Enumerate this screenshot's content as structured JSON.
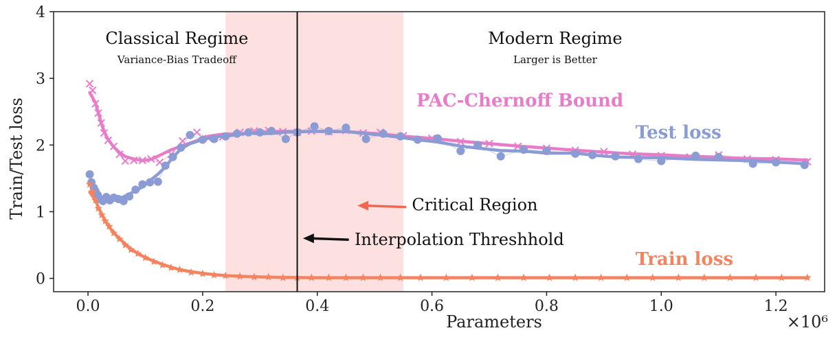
{
  "chart_data": {
    "type": "line",
    "xlabel": "Parameters",
    "xlabel_multiplier": "×10⁶",
    "ylabel": "Train/Test loss",
    "xlim": [
      -0.06,
      1.285
    ],
    "ylim": [
      -0.2,
      4
    ],
    "xticks": [
      0.0,
      0.2,
      0.4,
      0.6,
      0.8,
      1.0,
      1.2
    ],
    "xtick_labels": [
      "0.0",
      "0.2",
      "0.4",
      "0.6",
      "0.8",
      "1.0",
      "1.2"
    ],
    "yticks": [
      0,
      1,
      2,
      3,
      4
    ],
    "ytick_labels": [
      "0",
      "1",
      "2",
      "3",
      "4"
    ],
    "grid": false,
    "critical_region": {
      "x_start": 0.24,
      "x_end": 0.55,
      "color": "#fde1e1"
    },
    "interpolation_threshold_x": 0.365,
    "regimes": [
      {
        "title": "Classical Regime",
        "subtitle": "Variance-Bias Tradeoff",
        "x": 0.155
      },
      {
        "title": "Modern Regime",
        "subtitle": "Larger is Better",
        "x": 0.815
      }
    ],
    "annotations": [
      {
        "text": "Critical Region",
        "text_x": 0.565,
        "text_y": 1.1,
        "arrow_from": [
          0.555,
          1.07
        ],
        "arrow_to": [
          0.47,
          1.09
        ],
        "color": "#f2684f"
      },
      {
        "text": "Interpolation Threshhold",
        "text_x": 0.465,
        "text_y": 0.58,
        "arrow_from": [
          0.455,
          0.58
        ],
        "arrow_to": [
          0.375,
          0.6
        ],
        "color": "#111111"
      }
    ],
    "series": [
      {
        "name": "PAC-Chernoff Bound",
        "color": "#e77dc8",
        "marker": "x",
        "label_pos": [
          0.573,
          2.58
        ],
        "x": [
          0.003,
          0.008,
          0.013,
          0.018,
          0.023,
          0.028,
          0.035,
          0.045,
          0.055,
          0.065,
          0.08,
          0.095,
          0.11,
          0.125,
          0.145,
          0.165,
          0.19,
          0.21,
          0.235,
          0.265,
          0.29,
          0.315,
          0.34,
          0.365,
          0.39,
          0.42,
          0.45,
          0.48,
          0.51,
          0.55,
          0.6,
          0.65,
          0.7,
          0.75,
          0.8,
          0.85,
          0.9,
          0.95,
          1.0,
          1.05,
          1.1,
          1.15,
          1.2,
          1.255
        ],
        "y": [
          2.92,
          2.82,
          2.62,
          2.48,
          2.33,
          2.18,
          2.07,
          1.98,
          1.86,
          1.76,
          1.77,
          1.77,
          1.79,
          1.74,
          1.86,
          2.06,
          2.19,
          2.1,
          2.12,
          2.19,
          2.21,
          2.22,
          2.2,
          2.19,
          2.21,
          2.2,
          2.22,
          2.18,
          2.19,
          2.14,
          2.1,
          2.05,
          2.02,
          1.98,
          1.95,
          1.92,
          1.9,
          1.86,
          1.84,
          1.82,
          1.85,
          1.79,
          1.78,
          1.75
        ]
      },
      {
        "name": "Test loss",
        "color": "#8b9bd3",
        "marker": "o",
        "label_pos": [
          0.955,
          2.1
        ],
        "x": [
          0.003,
          0.006,
          0.01,
          0.013,
          0.017,
          0.021,
          0.026,
          0.032,
          0.038,
          0.045,
          0.053,
          0.062,
          0.072,
          0.083,
          0.095,
          0.108,
          0.122,
          0.135,
          0.148,
          0.162,
          0.178,
          0.2,
          0.22,
          0.24,
          0.26,
          0.28,
          0.3,
          0.32,
          0.345,
          0.365,
          0.395,
          0.42,
          0.45,
          0.485,
          0.515,
          0.545,
          0.575,
          0.61,
          0.65,
          0.68,
          0.72,
          0.76,
          0.8,
          0.85,
          0.88,
          0.92,
          0.96,
          1.0,
          1.06,
          1.1,
          1.16,
          1.2,
          1.25
        ],
        "y": [
          1.56,
          1.44,
          1.36,
          1.31,
          1.25,
          1.19,
          1.16,
          1.22,
          1.17,
          1.21,
          1.19,
          1.16,
          1.23,
          1.33,
          1.41,
          1.44,
          1.45,
          1.69,
          1.82,
          1.96,
          2.15,
          2.08,
          2.09,
          2.13,
          2.17,
          2.19,
          2.19,
          2.21,
          2.09,
          2.19,
          2.28,
          2.21,
          2.26,
          2.09,
          2.17,
          2.13,
          2.08,
          2.1,
          1.91,
          2.0,
          1.83,
          1.93,
          1.91,
          1.87,
          1.85,
          1.83,
          1.79,
          1.76,
          1.84,
          1.82,
          1.72,
          1.74,
          1.7
        ]
      },
      {
        "name": "Train loss",
        "color": "#f4845f",
        "marker": "star",
        "label_pos": [
          0.955,
          0.2
        ],
        "x": [
          0.003,
          0.008,
          0.013,
          0.018,
          0.024,
          0.03,
          0.037,
          0.045,
          0.055,
          0.065,
          0.075,
          0.087,
          0.1,
          0.115,
          0.13,
          0.145,
          0.16,
          0.18,
          0.2,
          0.22,
          0.24,
          0.265,
          0.29,
          0.315,
          0.34,
          0.365,
          0.39,
          0.42,
          0.45,
          0.48,
          0.51,
          0.545,
          0.58,
          0.625,
          0.67,
          0.715,
          0.76,
          0.805,
          0.85,
          0.895,
          0.94,
          0.985,
          1.03,
          1.075,
          1.12,
          1.165,
          1.21,
          1.255
        ],
        "y": [
          1.41,
          1.3,
          1.17,
          1.05,
          0.95,
          0.86,
          0.78,
          0.68,
          0.59,
          0.5,
          0.43,
          0.37,
          0.31,
          0.25,
          0.2,
          0.16,
          0.13,
          0.09,
          0.07,
          0.05,
          0.04,
          0.03,
          0.02,
          0.02,
          0.01,
          0.01,
          0.01,
          0.01,
          0.01,
          0.01,
          0.01,
          0.01,
          0.01,
          0.01,
          0.01,
          0.01,
          0.01,
          0.01,
          0.01,
          0.01,
          0.01,
          0.01,
          0.01,
          0.01,
          0.01,
          0.01,
          0.01,
          0.01
        ]
      }
    ]
  }
}
